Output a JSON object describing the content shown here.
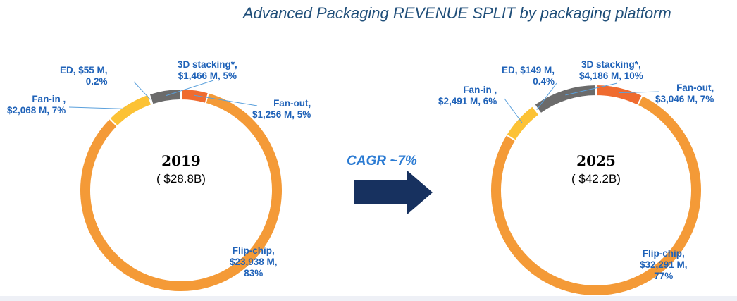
{
  "title": "Advanced Packaging REVENUE SPLIT by packaging platform",
  "cagr": "CAGR ~7%",
  "colors": {
    "flip_chip": "#f49a37",
    "fan_in": "#fcc235",
    "ed": "#ffffff",
    "stacking_3d": "#6b6b6b",
    "fan_out": "#ef6b2f",
    "label": "#1f62b8",
    "arrow": "#17315f"
  },
  "chart_data": [
    {
      "type": "pie",
      "style": "donut",
      "year": "2019",
      "total": "( $28.8B)",
      "slices": [
        {
          "name": "Fan-out",
          "value": 1256,
          "share": 5,
          "color": "#ef6b2f",
          "label": "Fan-out,\n$1,256 M, 5%"
        },
        {
          "name": "Flip-chip",
          "value": 23938,
          "share": 83,
          "color": "#f49a37",
          "label": "Flip-chip,\n$23,938 M,\n83%"
        },
        {
          "name": "Fan-in",
          "value": 2068,
          "share": 7,
          "color": "#fcc235",
          "label": "Fan-in ,\n$2,068 M, 7%"
        },
        {
          "name": "ED",
          "value": 55,
          "share": 0.2,
          "color": "#ffffff",
          "label": "ED, $55 M,\n0.2%"
        },
        {
          "name": "3D stacking*",
          "value": 1466,
          "share": 5,
          "color": "#6b6b6b",
          "label": "3D stacking*,\n$1,466 M, 5%"
        }
      ]
    },
    {
      "type": "pie",
      "style": "donut",
      "year": "2025",
      "total": "( $42.2B)",
      "slices": [
        {
          "name": "Fan-out",
          "value": 3046,
          "share": 7,
          "color": "#ef6b2f",
          "label": "Fan-out,\n$3,046 M, 7%"
        },
        {
          "name": "Flip-chip",
          "value": 32291,
          "share": 77,
          "color": "#f49a37",
          "label": "Flip-chip,\n$32,291 M,\n77%"
        },
        {
          "name": "Fan-in",
          "value": 2491,
          "share": 6,
          "color": "#fcc235",
          "label": "Fan-in ,\n$2,491 M, 6%"
        },
        {
          "name": "ED",
          "value": 149,
          "share": 0.4,
          "color": "#ffffff",
          "label": "ED, $149 M,\n0.4%"
        },
        {
          "name": "3D stacking*",
          "value": 4186,
          "share": 10,
          "color": "#6b6b6b",
          "label": "3D stacking*,\n$4,186 M, 10%"
        }
      ]
    }
  ]
}
